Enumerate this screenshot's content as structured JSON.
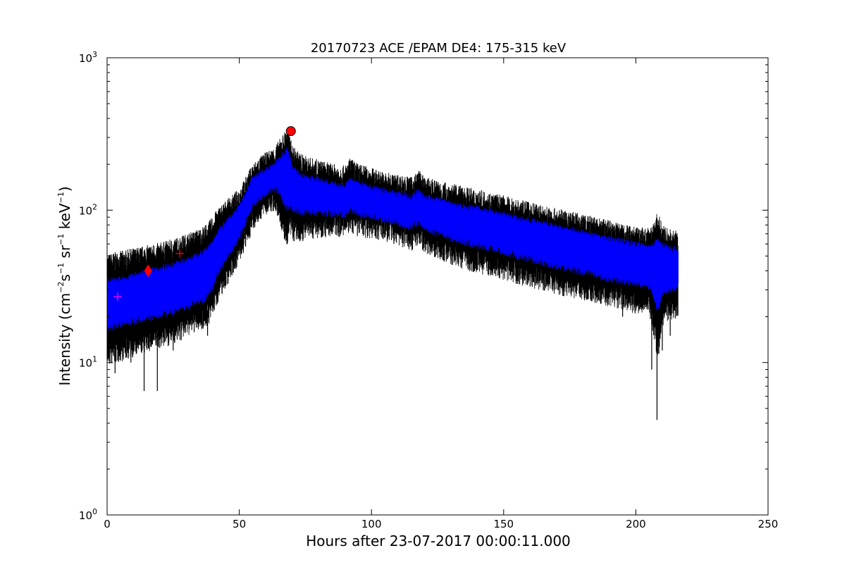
{
  "chart_data": {
    "type": "line",
    "title": "20170723 ACE /EPAM DE4: 175-315 keV",
    "xlabel": "Hours after 23-07-2017 00:00:11.000",
    "ylabel": {
      "prefix": "Intensity (cm",
      "e1": "−2",
      "s": "s",
      "e2": "−1",
      "sr": " sr",
      "e3": "−1",
      "kev": " keV",
      "e4": "−1",
      "suffix": ")"
    },
    "xlim": [
      0,
      250
    ],
    "ylim": [
      1,
      1000
    ],
    "yscale": "log",
    "x_ticks": [
      {
        "value": 0,
        "label": "0"
      },
      {
        "value": 50,
        "label": "50"
      },
      {
        "value": 100,
        "label": "100"
      },
      {
        "value": 150,
        "label": "150"
      },
      {
        "value": 200,
        "label": "200"
      },
      {
        "value": 250,
        "label": "250"
      }
    ],
    "y_ticks": [
      {
        "value": 1,
        "base": "10",
        "exp": "0"
      },
      {
        "value": 10,
        "base": "10",
        "exp": "1"
      },
      {
        "value": 100,
        "base": "10",
        "exp": "2"
      },
      {
        "value": 1000,
        "base": "10",
        "exp": "3"
      }
    ],
    "grid": false,
    "series": [
      {
        "color": "#000000",
        "style": "error-envelope",
        "x": [
          0,
          5,
          10,
          15,
          20,
          25,
          30,
          35,
          38,
          40,
          42,
          45,
          48,
          50,
          53,
          55,
          58,
          60,
          63,
          65,
          67,
          68,
          69,
          70,
          72,
          75,
          80,
          85,
          90,
          92,
          95,
          100,
          105,
          110,
          115,
          118,
          120,
          125,
          130,
          140,
          150,
          160,
          170,
          180,
          190,
          200,
          205,
          207,
          208,
          209,
          210,
          212,
          215,
          216
        ],
        "upper": [
          42,
          44,
          46,
          48,
          50,
          53,
          57,
          62,
          67,
          75,
          85,
          95,
          105,
          115,
          140,
          165,
          185,
          195,
          210,
          235,
          265,
          290,
          260,
          220,
          200,
          185,
          175,
          165,
          160,
          180,
          165,
          155,
          145,
          140,
          135,
          150,
          135,
          128,
          122,
          112,
          102,
          92,
          84,
          77,
          70,
          64,
          62,
          68,
          80,
          75,
          65,
          62,
          60,
          60
        ],
        "lower": [
          12,
          13,
          14,
          15,
          16,
          17,
          19,
          21,
          22,
          26,
          32,
          40,
          50,
          58,
          75,
          95,
          110,
          120,
          125,
          110,
          80,
          75,
          85,
          80,
          78,
          82,
          85,
          86,
          86,
          92,
          86,
          84,
          80,
          75,
          70,
          75,
          68,
          62,
          56,
          50,
          45,
          40,
          36,
          33,
          30,
          27,
          26,
          18,
          14,
          15,
          22,
          24,
          25,
          26
        ]
      },
      {
        "color": "#0000ff",
        "style": "filled-band",
        "x": [
          0,
          5,
          10,
          15,
          20,
          25,
          30,
          35,
          38,
          40,
          42,
          45,
          48,
          50,
          53,
          55,
          58,
          60,
          63,
          65,
          67,
          68,
          69,
          70,
          72,
          75,
          80,
          85,
          90,
          92,
          95,
          100,
          105,
          110,
          115,
          118,
          120,
          125,
          130,
          140,
          150,
          160,
          170,
          180,
          190,
          200,
          205,
          207,
          208,
          209,
          210,
          212,
          215,
          216
        ],
        "upper": [
          32,
          33,
          35,
          37,
          39,
          41,
          44,
          48,
          52,
          58,
          68,
          78,
          90,
          100,
          125,
          150,
          165,
          172,
          185,
          205,
          220,
          235,
          210,
          180,
          165,
          155,
          148,
          140,
          135,
          150,
          140,
          132,
          125,
          120,
          115,
          125,
          115,
          110,
          104,
          96,
          88,
          80,
          73,
          67,
          61,
          56,
          54,
          56,
          60,
          58,
          55,
          53,
          52,
          52
        ],
        "lower": [
          18,
          19,
          20,
          21,
          22,
          23,
          25,
          27,
          29,
          34,
          42,
          52,
          62,
          72,
          95,
          115,
          130,
          138,
          150,
          140,
          120,
          110,
          115,
          110,
          105,
          105,
          104,
          102,
          100,
          108,
          102,
          98,
          93,
          88,
          84,
          90,
          82,
          76,
          70,
          63,
          57,
          51,
          46,
          42,
          38,
          35,
          34,
          28,
          24,
          25,
          30,
          32,
          33,
          34
        ]
      }
    ],
    "black_spikes": [
      {
        "x": 3,
        "y": 8.5
      },
      {
        "x": 6,
        "y": 11
      },
      {
        "x": 9,
        "y": 10
      },
      {
        "x": 14,
        "y": 6.5
      },
      {
        "x": 19,
        "y": 6.5
      },
      {
        "x": 25,
        "y": 12
      },
      {
        "x": 28,
        "y": 14
      },
      {
        "x": 38,
        "y": 15
      },
      {
        "x": 68,
        "y": 60
      },
      {
        "x": 74,
        "y": 65
      },
      {
        "x": 130,
        "y": 50
      },
      {
        "x": 170,
        "y": 33
      },
      {
        "x": 185,
        "y": 28
      },
      {
        "x": 195,
        "y": 20
      },
      {
        "x": 206,
        "y": 9
      },
      {
        "x": 208,
        "y": 4.2
      },
      {
        "x": 210,
        "y": 12
      },
      {
        "x": 213,
        "y": 15
      }
    ],
    "markers": [
      {
        "x": 4,
        "y": 27,
        "shape": "plus",
        "color": "#ff00ff"
      },
      {
        "x": 15.5,
        "y": 40,
        "shape": "diamond",
        "color": "#ff0000"
      },
      {
        "x": 27.5,
        "y": 52,
        "shape": "plus",
        "color": "#ff0000"
      },
      {
        "x": 69.5,
        "y": 330,
        "shape": "circle",
        "color": "#ff0000"
      }
    ]
  }
}
